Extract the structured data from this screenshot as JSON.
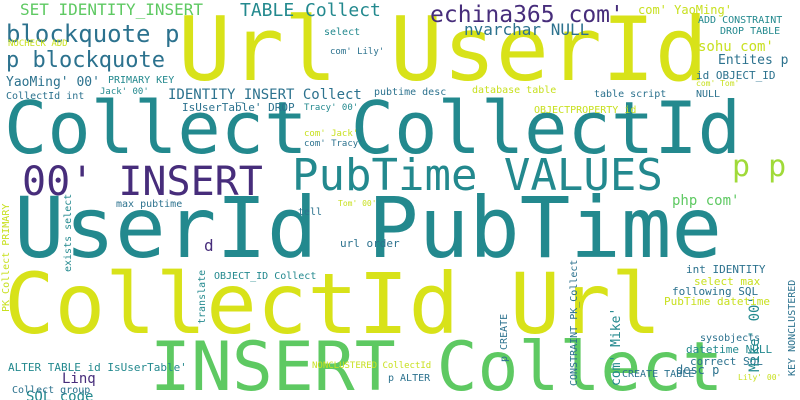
{
  "colors": {
    "yellow": "#d8e219",
    "teal": "#23898e",
    "green": "#5ec962",
    "blue": "#3b528b",
    "purple": "#472d7b",
    "lime": "#a0da39",
    "navy": "#2c728e",
    "light": "#c8e020"
  },
  "words": {
    "url_userid": "Url UserId",
    "collect_collectid": "Collect CollectId",
    "userid_pubtime": "UserId PubTime",
    "collectid_url": "CollectId Url",
    "insert_collect": "INSERT Collect",
    "pubtime_values": "PubTime VALUES",
    "oo_insert": "00' INSERT",
    "blockquote_p": "blockquote p",
    "p_blockquote": "p blockquote",
    "echina": "echina365 com'",
    "p_p": "p p",
    "table_collect": "TABLE Collect",
    "set_identity": "SET IDENTITY_INSERT",
    "nvarchar_null": "nvarchar NULL",
    "yaoming_oo": "YaoMing' 00'",
    "identity_insert_collect": "IDENTITY_INSERT Collect",
    "php_com": "php com'",
    "sohu_com": "sohu com'",
    "entites_p": "Entites p",
    "com_yaoming": "com' YaoMing'",
    "add_constraint": "ADD CONSTRAINT",
    "drop_table": "DROP TABLE",
    "id_object_id": "id OBJECT_ID",
    "select": "select",
    "com_lily": "com' Lily'",
    "nocheck_add": "NOCHECK ADD",
    "primary_key": "PRIMARY KEY",
    "jack_oo": "Jack' 00'",
    "collectid_int": "CollectId int",
    "istusertable_drop": "IsUserTable' DROP",
    "tracy_oo": "Tracy' 00'",
    "pubtime_desc": "pubtime desc",
    "database_table": "database table",
    "table_script": "table script",
    "objectproperty_id": "OBJECTPROPERTY id",
    "com_jack": "com' Jack'",
    "com_tracy": "com' Tracy'",
    "com_tom": "com' Tom'",
    "null": "NULL",
    "max_pubtime": "max pubtime",
    "tom_oo": "Tom' 00'",
    "tell": "tell",
    "d": "d",
    "url_order": "url order",
    "objectid_collect": "OBJECT_ID Collect",
    "int_identity": "int IDENTITY",
    "select_max": "select max",
    "following_sql": "following SQL",
    "pubtime_datetime": "PubTime datetime",
    "sysobjects": "sysobjects",
    "datetime_null": "datetime NULL",
    "correct_sql": "correct SQL",
    "desc_p": "desc p",
    "create_table": "CREATE TABLE",
    "alter_table": "ALTER TABLE id IsUserTable'",
    "nonclustered_collectid": "NONCLUSTERED CollectId",
    "linq": "Linq",
    "sql_code": "SQL code",
    "collect_group": "Collect group",
    "p_alter": "p ALTER",
    "lily_oo": "Lily' 00'",
    "mike_oo": "Mike' 00'",
    "com_mike": "com' Mike'",
    "pk_collect_primary": "PK_Collect PRIMARY",
    "exists_select": "exists select",
    "translate": "translate",
    "p_create": "p CREATE",
    "constraint_pk": "CONSTRAINT PK_Collect",
    "key_nonclustered": "KEY NONCLUSTERED"
  }
}
